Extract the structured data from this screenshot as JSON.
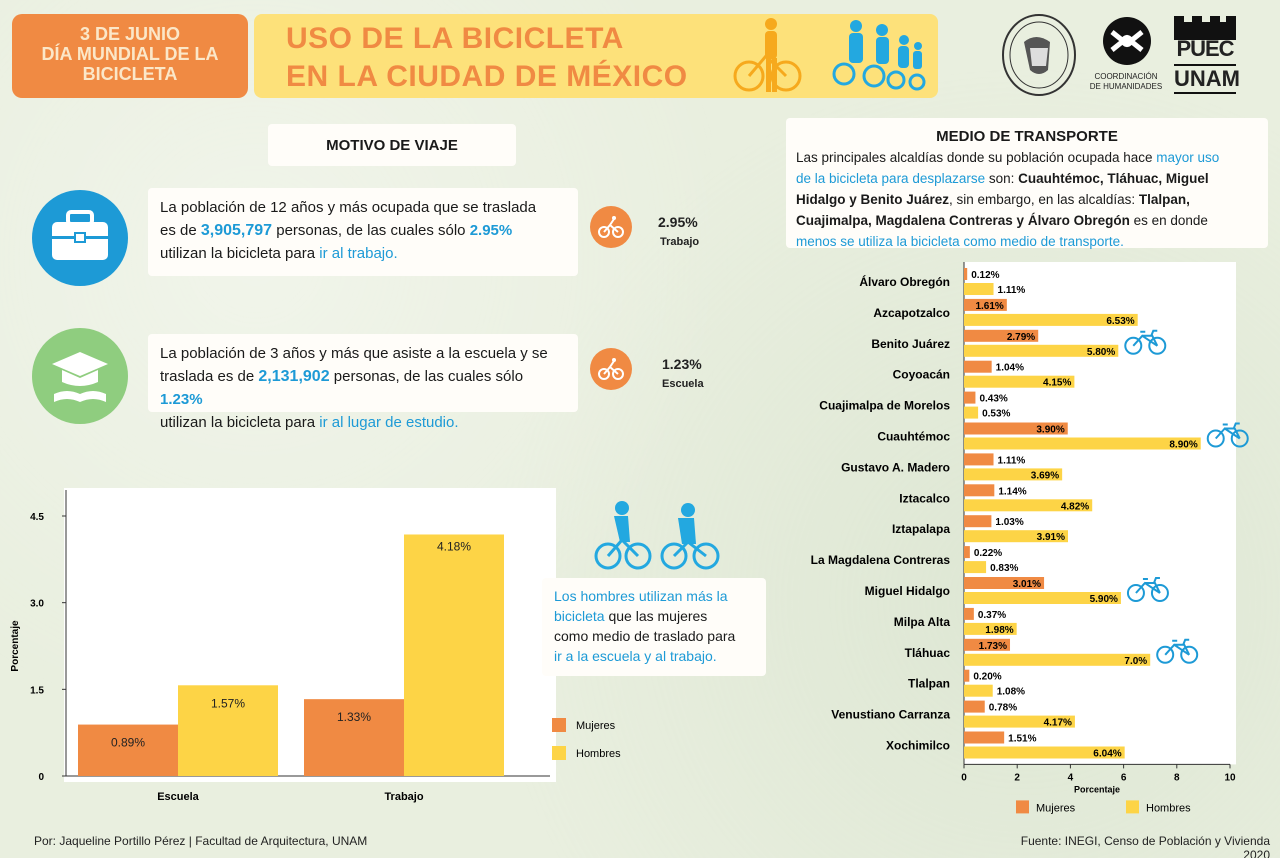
{
  "header": {
    "date_line1": "3 DE JUNIO",
    "date_line2": "DÍA MUNDIAL DE LA",
    "date_line3": "BICICLETA",
    "title_line1": "USO DE LA BICICLETA",
    "title_line2": "EN LA CIUDAD DE MÉXICO",
    "logo2_line1": "COORDINACIÓN",
    "logo2_line2": "DE HUMANIDADES",
    "logo3_line1": "PUEC",
    "logo3_line2": "UNAM"
  },
  "motivo": {
    "title": "MOTIVO DE VIAJE",
    "work": {
      "t1": "La población de 12 años y más ocupada que se traslada",
      "t2a": "es de ",
      "t2b": "3,905,797",
      "t2c": " personas, de las cuales sólo ",
      "t2d": "2.95%",
      "t3a": "utilizan la bicicleta para ",
      "t3b": "ir al trabajo.",
      "pct": "2.95%",
      "label": "Trabajo"
    },
    "school": {
      "t1": "La población de 3 años y más que asiste a la escuela y se",
      "t2a": "traslada es de ",
      "t2b": "2,131,902",
      "t2c": " personas, de las cuales sólo ",
      "t2d": "1.23%",
      "t3a": "utilizan la bicicleta para ",
      "t3b": "ir al lugar de estudio.",
      "pct": "1.23%",
      "label": "Escuela"
    },
    "men_note": {
      "a": "Los hombres utilizan más  la",
      "b": "bicicleta",
      "c": " que las mujeres",
      "d": "como medio de traslado para",
      "e": "ir a la escuela y al trabajo."
    }
  },
  "medio": {
    "title": "MEDIO DE TRANSPORTE",
    "p1a": "Las principales alcaldías donde su población ocupada hace ",
    "p1b": "mayor uso",
    "p2a": "de la bicicleta para desplazarse",
    "p2b": " son: ",
    "p2c": "Cuauhtémoc, Tláhuac, Miguel",
    "p3a": "Hidalgo y Benito Juárez",
    "p3b": ", sin embargo, en las alcaldías: ",
    "p3c": "Tlalpan,",
    "p4a": "Cuajimalpa, Magdalena Contreras y Álvaro Obregón",
    "p4b": " es en donde",
    "p5": "menos se utiliza la bicicleta como medio de transporte."
  },
  "colors": {
    "mujeres": "#f08a43",
    "hombres": "#fdd446",
    "accent": "#1d9ad6"
  },
  "chart_data": [
    {
      "type": "bar",
      "categories": [
        "Escuela",
        "Trabajo"
      ],
      "series": [
        {
          "name": "Mujeres",
          "values": [
            0.89,
            1.33
          ],
          "labels": [
            "0.89%",
            "1.33%"
          ]
        },
        {
          "name": "Hombres",
          "values": [
            1.57,
            4.18
          ],
          "labels": [
            "1.57%",
            "4.18%"
          ]
        }
      ],
      "ylabel": "Porcentaje",
      "yticks": [
        "4.5",
        "3.0",
        "1.5",
        "0"
      ],
      "ylim": [
        0,
        4.5
      ]
    },
    {
      "type": "bar",
      "orientation": "horizontal",
      "categories": [
        "Álvaro Obregón",
        "Azcapotzalco",
        "Benito Juárez",
        "Coyoacán",
        "Cuajimalpa de Morelos",
        "Cuauhtémoc",
        "Gustavo A. Madero",
        "Iztacalco",
        "Iztapalapa",
        "La Magdalena Contreras",
        "Miguel Hidalgo",
        "Milpa Alta",
        "Tláhuac",
        "Tlalpan",
        "Venustiano Carranza",
        "Xochimilco"
      ],
      "series": [
        {
          "name": "Mujeres",
          "values": [
            0.12,
            1.61,
            2.79,
            1.04,
            0.43,
            3.9,
            1.11,
            1.14,
            1.03,
            0.22,
            3.01,
            0.37,
            1.73,
            0.2,
            0.78,
            1.51
          ],
          "labels": [
            "0.12%",
            "1.61%",
            "2.79%",
            "1.04%",
            "0.43%",
            "3.90%",
            "1.11%",
            "1.14%",
            "1.03%",
            "0.22%",
            "3.01%",
            "0.37%",
            "1.73%",
            "0.20%",
            "0.78%",
            "1.51%"
          ]
        },
        {
          "name": "Hombres",
          "values": [
            1.11,
            6.53,
            5.8,
            4.15,
            0.53,
            8.9,
            3.69,
            4.82,
            3.91,
            0.83,
            5.9,
            1.98,
            7.0,
            1.08,
            4.17,
            6.04
          ],
          "labels": [
            "1.11%",
            "6.53%",
            "5.80%",
            "4.15%",
            "0.53%",
            "8.90%",
            "3.69%",
            "4.82%",
            "3.91%",
            "0.83%",
            "5.90%",
            "1.98%",
            "7.0%",
            "1.08%",
            "4.17%",
            "6.04%"
          ]
        }
      ],
      "xlabel": "Porcentaje",
      "xticks": [
        "0",
        "2",
        "4",
        "6",
        "8",
        "10"
      ],
      "xlim": [
        0,
        10
      ],
      "highlight": [
        "Benito Juárez",
        "Cuauhtémoc",
        "Miguel Hidalgo",
        "Tláhuac"
      ]
    }
  ],
  "footer": {
    "author": "Por: Jaqueline Portillo Pérez  | Facultad de Arquitectura, UNAM",
    "source": "Fuente: INEGI, Censo de Población y Vivienda 2020"
  }
}
